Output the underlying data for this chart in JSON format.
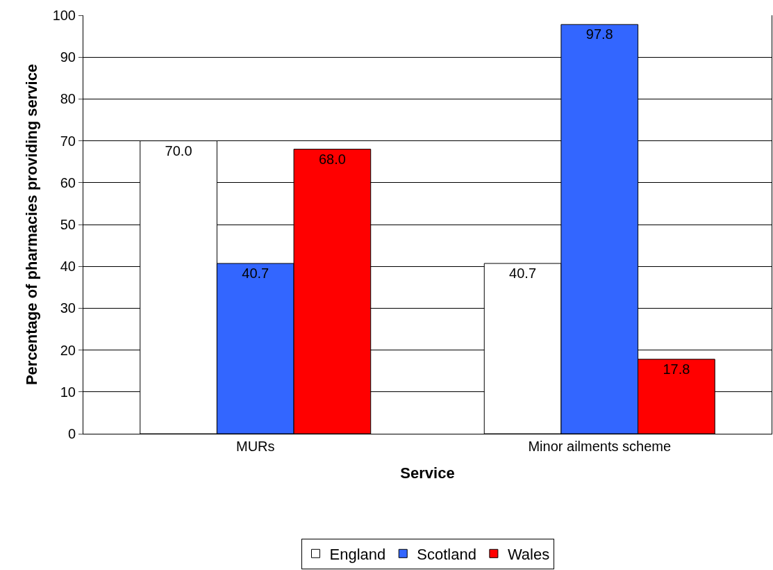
{
  "chart_data": {
    "type": "bar",
    "xlabel": "Service",
    "ylabel": "Percentage of pharmacies providing service",
    "categories": [
      "MURs",
      "Minor ailments scheme"
    ],
    "series": [
      {
        "name": "England",
        "color": "#ffffff",
        "values": [
          70.0,
          40.7
        ],
        "value_labels": [
          "70.0",
          "40.7"
        ]
      },
      {
        "name": "Scotland",
        "color": "#3366ff",
        "values": [
          40.7,
          97.8
        ],
        "value_labels": [
          "40.7",
          "97.8"
        ]
      },
      {
        "name": "Wales",
        "color": "#ff0000",
        "values": [
          68.0,
          17.8
        ],
        "value_labels": [
          "68.0",
          "17.8"
        ]
      }
    ],
    "ylim": [
      0,
      100
    ],
    "yticks": [
      0,
      10,
      20,
      30,
      40,
      50,
      60,
      70,
      80,
      90,
      100
    ],
    "grid": "y",
    "legend": "bottom"
  }
}
